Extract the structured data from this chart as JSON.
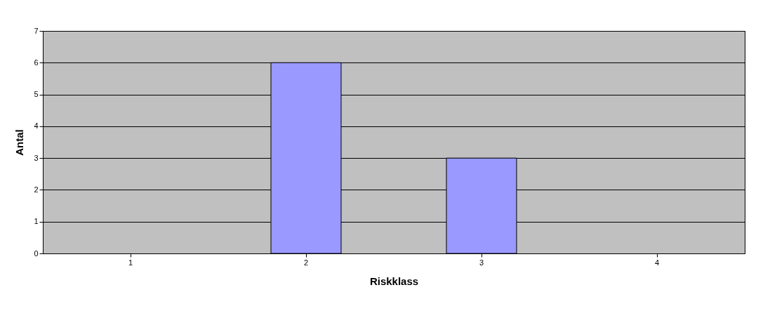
{
  "chart_data": {
    "type": "bar",
    "xlabel": "Riskklass",
    "ylabel": "Antal",
    "categories": [
      "1",
      "2",
      "3",
      "4"
    ],
    "values": [
      0,
      6,
      3,
      0
    ],
    "color": "#9999ff",
    "ylim": [
      0,
      7
    ],
    "yticks": [
      0,
      1,
      2,
      3,
      4,
      5,
      6,
      7
    ],
    "grid": "y"
  }
}
